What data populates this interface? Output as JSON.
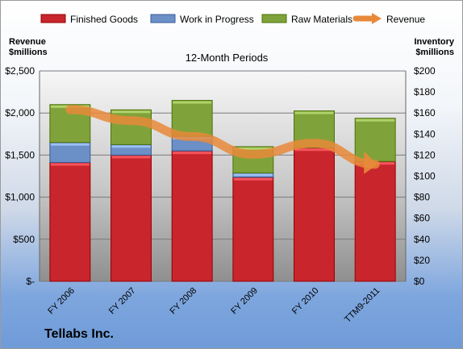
{
  "chart_data": {
    "type": "bar",
    "title": "12-Month Periods",
    "categories": [
      "FY 2006",
      "FY 2007",
      "FY 2008",
      "FY 2009",
      "FY 2010",
      "TTM9-2011"
    ],
    "series": [
      {
        "name": "Finished Goods",
        "values": [
          113,
          120,
          124,
          99,
          127,
          114
        ],
        "axis": "right",
        "stacked": true,
        "color": "#c8262c"
      },
      {
        "name": "Work in Progress",
        "values": [
          19,
          10,
          14,
          4,
          0,
          0
        ],
        "axis": "right",
        "stacked": true,
        "color": "#6b8fc7"
      },
      {
        "name": "Raw Materials",
        "values": [
          36,
          33,
          34,
          25,
          35,
          41
        ],
        "axis": "right",
        "stacked": true,
        "color": "#7fa33a"
      },
      {
        "name": "Revenue",
        "values": [
          2040,
          1910,
          1720,
          1510,
          1640,
          1390
        ],
        "axis": "left",
        "type": "line",
        "color": "#e8893a"
      }
    ],
    "left_axis": {
      "label_line1": "Revenue",
      "label_line2": "$millions",
      "ylim": [
        0,
        2500
      ],
      "ticks": [
        "$-",
        "$500",
        "$1,000",
        "$1,500",
        "$2,000",
        "$2,500"
      ]
    },
    "right_axis": {
      "label_line1": "Inventory",
      "label_line2": "$millions",
      "ylim": [
        0,
        200
      ],
      "ticks": [
        "$0",
        "$20",
        "$40",
        "$60",
        "$80",
        "$100",
        "$120",
        "$140",
        "$160",
        "$180",
        "$200"
      ]
    },
    "legend_position": "top",
    "grid": true
  },
  "company": "Tellabs Inc."
}
